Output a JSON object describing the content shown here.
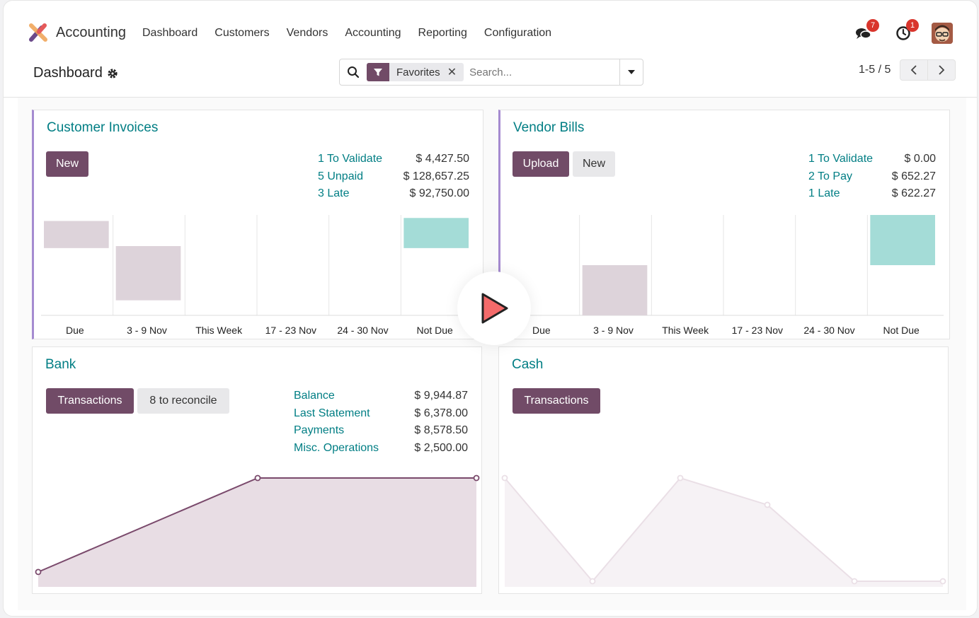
{
  "header": {
    "app_name": "Accounting",
    "menu": [
      "Dashboard",
      "Customers",
      "Vendors",
      "Accounting",
      "Reporting",
      "Configuration"
    ],
    "chat_badge": "7",
    "activity_badge": "1"
  },
  "control": {
    "breadcrumb": "Dashboard",
    "facet_label": "Favorites",
    "search_placeholder": "Search...",
    "pager": "1-5 / 5"
  },
  "customer_invoices": {
    "title": "Customer Invoices",
    "new_label": "New",
    "stats": [
      {
        "label": "1 To Validate",
        "value": "$ 4,427.50"
      },
      {
        "label": "5 Unpaid",
        "value": "$ 128,657.25"
      },
      {
        "label": "3 Late",
        "value": "$ 92,750.00"
      }
    ]
  },
  "vendor_bills": {
    "title": "Vendor Bills",
    "upload_label": "Upload",
    "new_label": "New",
    "stats": [
      {
        "label": "1 To Validate",
        "value": "$ 0.00"
      },
      {
        "label": "2 To Pay",
        "value": "$ 652.27"
      },
      {
        "label": "1 Late",
        "value": "$ 622.27"
      }
    ]
  },
  "bank": {
    "title": "Bank",
    "transactions_label": "Transactions",
    "reconcile_label": "8 to reconcile",
    "stats": [
      {
        "label": "Balance",
        "value": "$ 9,944.87"
      },
      {
        "label": "Last Statement",
        "value": "$ 6,378.00"
      },
      {
        "label": "Payments",
        "value": "$ 8,578.50"
      },
      {
        "label": "Misc. Operations",
        "value": "$ 2,500.00"
      }
    ]
  },
  "cash": {
    "title": "Cash",
    "transactions_label": "Transactions"
  },
  "colors": {
    "accent": "#714b67",
    "teal": "#017e84",
    "bar_past": "#ddd3da",
    "bar_future": "#a4dcd7"
  },
  "chart_data": [
    {
      "type": "bar",
      "id": "customer_invoices",
      "categories": [
        "Due",
        "3 - 9 Nov",
        "This Week",
        "17 - 23 Nov",
        "24 - 30 Nov",
        "Not Due"
      ],
      "values": [
        0.27,
        0.54,
        0,
        0,
        0,
        0.3
      ],
      "bar_top": [
        0.94,
        0.69,
        0,
        0,
        0,
        0.97
      ],
      "colors": [
        "#ddd3da",
        "#ddd3da",
        "#ddd3da",
        "#ddd3da",
        "#ddd3da",
        "#a4dcd7"
      ]
    },
    {
      "type": "bar",
      "id": "vendor_bills",
      "categories": [
        "Due",
        "3 - 9 Nov",
        "This Week",
        "17 - 23 Nov",
        "24 - 30 Nov",
        "Not Due"
      ],
      "values": [
        0,
        0.5,
        0,
        0,
        0,
        0.5
      ],
      "bar_top": [
        0,
        0.5,
        0,
        0,
        0,
        1.0
      ],
      "colors": [
        "#ddd3da",
        "#ddd3da",
        "#ddd3da",
        "#ddd3da",
        "#ddd3da",
        "#a4dcd7"
      ]
    },
    {
      "type": "area",
      "id": "bank",
      "x": [
        0,
        1,
        2
      ],
      "values": [
        0.09,
        1.0,
        1.0
      ]
    },
    {
      "type": "area",
      "id": "cash",
      "x": [
        0,
        1,
        2,
        3,
        4,
        5
      ],
      "values": [
        1.0,
        0.0,
        1.0,
        0.74,
        0.0,
        0.0
      ]
    }
  ]
}
